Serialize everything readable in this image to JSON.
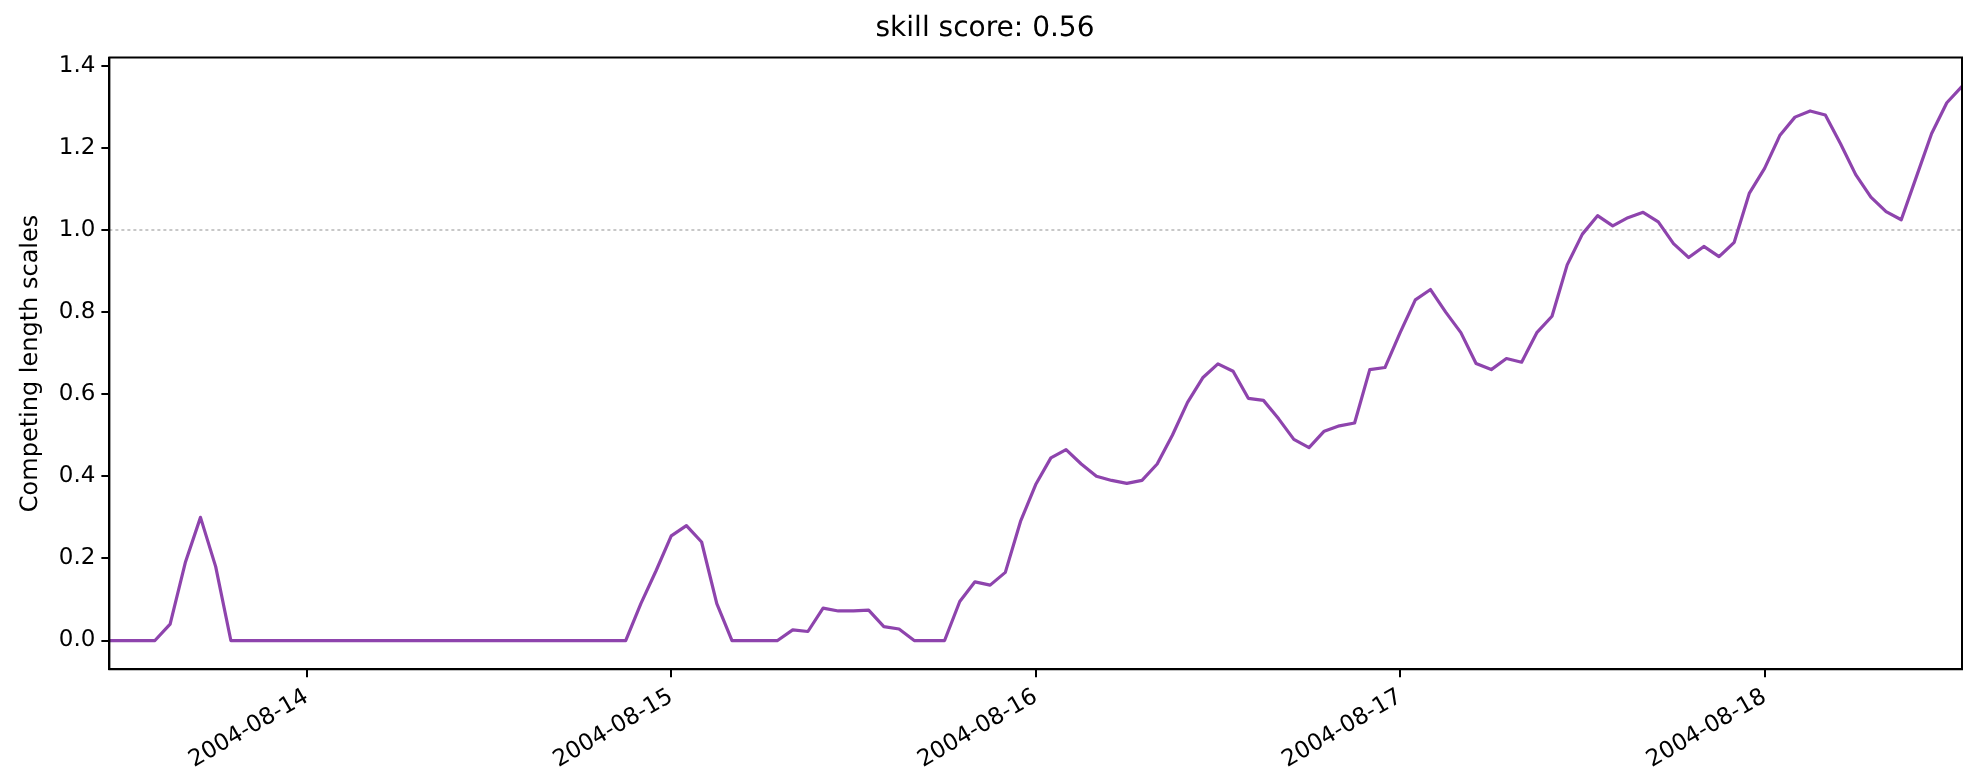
{
  "chart_data": {
    "type": "line",
    "title": "skill score: 0.56",
    "ylabel": "Competing length scales",
    "x": [
      "2004-08-13T11:00",
      "2004-08-13T14:00",
      "2004-08-13T15:00",
      "2004-08-13T16:00",
      "2004-08-13T17:00",
      "2004-08-13T18:00",
      "2004-08-13T19:00",
      "2004-08-14T21:00",
      "2004-08-14T22:00",
      "2004-08-14T23:00",
      "2004-08-15T00:00",
      "2004-08-15T01:00",
      "2004-08-15T02:00",
      "2004-08-15T03:00",
      "2004-08-15T04:00",
      "2004-08-15T07:00",
      "2004-08-15T08:00",
      "2004-08-15T09:00",
      "2004-08-15T10:00",
      "2004-08-15T11:00",
      "2004-08-15T12:00",
      "2004-08-15T13:00",
      "2004-08-15T14:00",
      "2004-08-15T15:00",
      "2004-08-15T16:00",
      "2004-08-15T18:00",
      "2004-08-15T19:00",
      "2004-08-15T20:00",
      "2004-08-15T21:00",
      "2004-08-15T22:00",
      "2004-08-15T23:00",
      "2004-08-16T00:00",
      "2004-08-16T01:00",
      "2004-08-16T02:00",
      "2004-08-16T03:00",
      "2004-08-16T04:00",
      "2004-08-16T05:00",
      "2004-08-16T06:00",
      "2004-08-16T07:00",
      "2004-08-16T08:00",
      "2004-08-16T09:00",
      "2004-08-16T10:00",
      "2004-08-16T11:00",
      "2004-08-16T12:00",
      "2004-08-16T13:00",
      "2004-08-16T14:00",
      "2004-08-16T15:00",
      "2004-08-16T16:00",
      "2004-08-16T17:00",
      "2004-08-16T18:00",
      "2004-08-16T19:00",
      "2004-08-16T20:00",
      "2004-08-16T21:00",
      "2004-08-16T22:00",
      "2004-08-16T23:00",
      "2004-08-17T00:00",
      "2004-08-17T01:00",
      "2004-08-17T02:00",
      "2004-08-17T03:00",
      "2004-08-17T04:00",
      "2004-08-17T05:00",
      "2004-08-17T06:00",
      "2004-08-17T07:00",
      "2004-08-17T08:00",
      "2004-08-17T09:00",
      "2004-08-17T10:00",
      "2004-08-17T11:00",
      "2004-08-17T12:00",
      "2004-08-17T13:00",
      "2004-08-17T14:00",
      "2004-08-17T15:00",
      "2004-08-17T16:00",
      "2004-08-17T17:00",
      "2004-08-17T18:00",
      "2004-08-17T19:00",
      "2004-08-17T20:00",
      "2004-08-17T21:00",
      "2004-08-17T22:00",
      "2004-08-17T23:00",
      "2004-08-18T00:00",
      "2004-08-18T01:00",
      "2004-08-18T02:00",
      "2004-08-18T03:00",
      "2004-08-18T04:00",
      "2004-08-18T05:00",
      "2004-08-18T06:00",
      "2004-08-18T07:00",
      "2004-08-18T08:00",
      "2004-08-18T09:00",
      "2004-08-18T10:00",
      "2004-08-18T11:00",
      "2004-08-18T12:00",
      "2004-08-18T13:00"
    ],
    "series": [
      {
        "color": "#8e44ad",
        "values": [
          0,
          0,
          0.04,
          0.19,
          0.3,
          0.18,
          0,
          0,
          0.09,
          0.17,
          0.255,
          0.28,
          0.24,
          0.09,
          0,
          0,
          0.026,
          0.022,
          0.079,
          0.072,
          0.072,
          0.074,
          0.034,
          0.028,
          0,
          0,
          0.095,
          0.143,
          0.135,
          0.166,
          0.29,
          0.38,
          0.445,
          0.465,
          0.43,
          0.4,
          0.39,
          0.383,
          0.39,
          0.43,
          0.5,
          0.58,
          0.64,
          0.674,
          0.656,
          0.59,
          0.585,
          0.54,
          0.49,
          0.47,
          0.51,
          0.523,
          0.53,
          0.66,
          0.665,
          0.75,
          0.83,
          0.855,
          0.8,
          0.75,
          0.675,
          0.66,
          0.687,
          0.678,
          0.75,
          0.79,
          0.915,
          0.99,
          1.035,
          1.01,
          1.03,
          1.043,
          1.02,
          0.967,
          0.933,
          0.96,
          0.935,
          0.97,
          1.09,
          1.15,
          1.23,
          1.275,
          1.29,
          1.28,
          1.21,
          1.135,
          1.08,
          1.045,
          1.025,
          1.13,
          1.235,
          1.31,
          1.35
        ]
      }
    ],
    "xlim": [
      "2004-08-13T11:00",
      "2004-08-18T13:00"
    ],
    "xticks": [
      "2004-08-14",
      "2004-08-15",
      "2004-08-16",
      "2004-08-17",
      "2004-08-18"
    ],
    "ylim": [
      -0.07,
      1.42
    ],
    "yticks": [
      {
        "value": 0,
        "label": "0.0"
      },
      {
        "value": 0.2,
        "label": "0.2"
      },
      {
        "value": 0.4,
        "label": "0.4"
      },
      {
        "value": 0.6,
        "label": "0.6"
      },
      {
        "value": 0.8,
        "label": "0.8"
      },
      {
        "value": 1,
        "label": "1.0"
      },
      {
        "value": 1.2,
        "label": "1.2"
      },
      {
        "value": 1.4,
        "label": "1.4"
      }
    ],
    "ref_lines": [
      {
        "axis": "y",
        "value": 1.0,
        "color": "#c8c8c8",
        "line_style": "dotted"
      }
    ],
    "grid": false,
    "legend": false,
    "marker": "none",
    "line_style": "solid"
  }
}
